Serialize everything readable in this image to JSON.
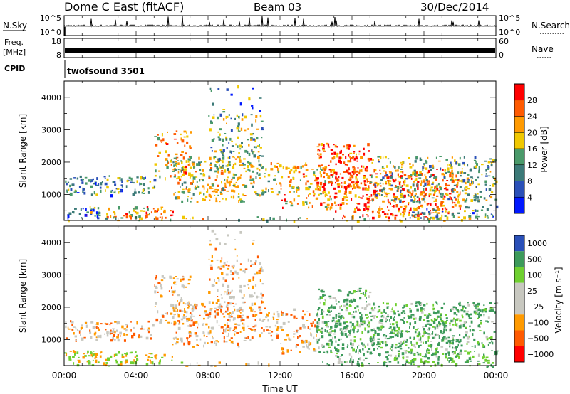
{
  "header": {
    "station": "Dome C East (fitACF)",
    "beam": "Beam 03",
    "date": "30/Dec/2014"
  },
  "noise_panel": {
    "left_label": "N.Sky",
    "left_ticks": [
      "10^5",
      "10^0"
    ],
    "right_ticks": [
      "10^5",
      "10^0"
    ],
    "right_label": "N.Search"
  },
  "freq_panel": {
    "left_label_1": "Freq.",
    "left_label_2": "[MHz]",
    "left_ticks": [
      "18",
      "8"
    ],
    "right_ticks": [
      "60",
      "0"
    ],
    "right_label": "Nave"
  },
  "cpid": {
    "label": "CPID",
    "value": "twofsound 3501"
  },
  "colors": {
    "power_scale": [
      "#0018ff",
      "#2a50b8",
      "#3c7a78",
      "#4a9a6a",
      "#f0c800",
      "#ff9a00",
      "#ff5a00",
      "#ff0000"
    ],
    "velocity_scale": [
      "#ff0000",
      "#ff5a00",
      "#ff9a00",
      "#c8c8c0",
      "#c8c8c0",
      "#6fd030",
      "#3c9a5a",
      "#2a50b8"
    ]
  },
  "chart_data": [
    {
      "type": "heatmap",
      "name": "power",
      "ylabel": "Slant Range [km]",
      "yticks": [
        "1000",
        "2000",
        "3000",
        "4000"
      ],
      "ylim": [
        200,
        4500
      ],
      "xlim_hours": [
        0,
        24
      ],
      "colorbar_title": "Power [dB]",
      "colorbar_ticks": [
        "4",
        "8",
        "12",
        "16",
        "20",
        "24",
        "28"
      ],
      "colorbar_range": [
        0,
        30
      ]
    },
    {
      "type": "heatmap",
      "name": "velocity",
      "ylabel": "Slant Range [km]",
      "yticks": [
        "1000",
        "2000",
        "3000",
        "4000"
      ],
      "ylim": [
        200,
        4500
      ],
      "xlim_hours": [
        0,
        24
      ],
      "colorbar_title": "Velocity [m s⁻¹]",
      "colorbar_ticks": [
        "1000",
        "500",
        "100",
        "25",
        "−25",
        "−100",
        "−500",
        "−1000"
      ],
      "xticks": [
        "00:00",
        "04:00",
        "08:00",
        "12:00",
        "16:00",
        "20:00",
        "00:00"
      ],
      "xlabel": "Time UT"
    }
  ]
}
